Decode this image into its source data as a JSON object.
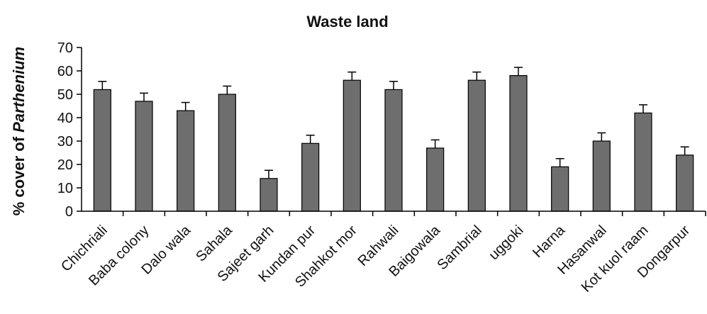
{
  "chart_data": {
    "type": "bar",
    "title": "Waste land",
    "ylabel_prefix": "% cover of ",
    "ylabel_italic": "Parthenium",
    "xlabel": "",
    "ylim": [
      0,
      70
    ],
    "yticks": [
      0,
      10,
      20,
      30,
      40,
      50,
      60,
      70
    ],
    "grid": false,
    "error_bars": true,
    "categories": [
      "Chichriali",
      "Baba colony",
      "Dalo wala",
      "Sahala",
      "Sajeet garh",
      "Kundan pur",
      "Shahkot mor",
      "Rahwali",
      "Baigowala",
      "Sambrial",
      "uggoki",
      "Harna",
      "Hasanwal",
      "Kot kuol raam",
      "Dongarpur"
    ],
    "values": [
      52,
      47,
      43,
      50,
      14,
      29,
      56,
      52,
      27,
      56,
      58,
      19,
      30,
      42,
      24
    ],
    "errors": [
      3.5,
      3.5,
      3.5,
      3.5,
      3.5,
      3.5,
      3.5,
      3.5,
      3.5,
      3.5,
      3.5,
      3.5,
      3.5,
      3.5,
      3.5
    ],
    "colors": {
      "bar": "#6e6e6e",
      "outline": "#000000"
    }
  }
}
